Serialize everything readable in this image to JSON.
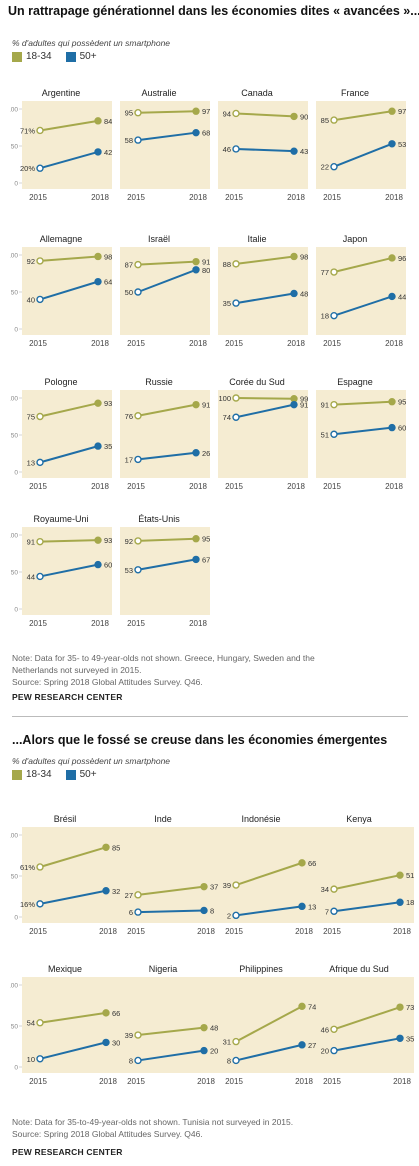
{
  "colors": {
    "young": "#a5a84b",
    "old": "#1f6ea6",
    "panel_bg": "#f5ecd2",
    "ytick": "#888888"
  },
  "section1": {
    "title": "Un rattrapage générationnel dans les économies dites « avancées »...",
    "subtitle": "% d'adultes qui possèdent un smartphone",
    "legend": [
      "18-34",
      "50+"
    ],
    "note_lines": [
      "Note: Data for 35- to 49-year-olds not shown. Greece, Hungary, Sweden and the",
      "Netherlands not surveyed in 2015.",
      "Source: Spring 2018 Global Attitudes Survey. Q46."
    ],
    "brand": "PEW RESEARCH CENTER"
  },
  "section2": {
    "title": "...Alors que le fossé se creuse dans les économies émergentes",
    "subtitle": "% d'adultes qui possèdent un smartphone",
    "legend": [
      "18-34",
      "50+"
    ],
    "note_lines": [
      "Note: Data for 35-to-49-year-olds not shown. Tunisia not surveyed in 2015.",
      "Source: Spring 2018 Global Attitudes Survey. Q46."
    ],
    "brand": "PEW RESEARCH CENTER"
  },
  "chart_data": [
    {
      "type": "line",
      "x": [
        "2015",
        "2018"
      ],
      "yticks": [
        "100",
        "50",
        "0"
      ],
      "ylim": [
        0,
        100
      ],
      "series_names": [
        "18-34",
        "50+"
      ],
      "panels": [
        {
          "title": "Argentine",
          "young": [
            71,
            84
          ],
          "old": [
            20,
            42
          ],
          "young_labels": [
            "71%",
            "84"
          ],
          "old_labels": [
            "20%",
            "42"
          ]
        },
        {
          "title": "Australie",
          "young": [
            95,
            97
          ],
          "old": [
            58,
            68
          ],
          "young_labels": [
            "95",
            "97"
          ],
          "old_labels": [
            "58",
            "68"
          ]
        },
        {
          "title": "Canada",
          "young": [
            94,
            90
          ],
          "old": [
            46,
            43
          ],
          "young_labels": [
            "94",
            "90"
          ],
          "old_labels": [
            "46",
            "43"
          ]
        },
        {
          "title": "France",
          "young": [
            85,
            97
          ],
          "old": [
            22,
            53
          ],
          "young_labels": [
            "85",
            "97"
          ],
          "old_labels": [
            "22",
            "53"
          ]
        },
        {
          "title": "Allemagne",
          "young": [
            92,
            98
          ],
          "old": [
            40,
            64
          ],
          "young_labels": [
            "92",
            "98"
          ],
          "old_labels": [
            "40",
            "64"
          ]
        },
        {
          "title": "Israël",
          "young": [
            87,
            91
          ],
          "old": [
            50,
            80
          ],
          "young_labels": [
            "87",
            "91"
          ],
          "old_labels": [
            "50",
            "80"
          ]
        },
        {
          "title": "Italie",
          "young": [
            88,
            98
          ],
          "old": [
            35,
            48
          ],
          "young_labels": [
            "88",
            "98"
          ],
          "old_labels": [
            "35",
            "48"
          ]
        },
        {
          "title": "Japon",
          "young": [
            77,
            96
          ],
          "old": [
            18,
            44
          ],
          "young_labels": [
            "77",
            "96"
          ],
          "old_labels": [
            "18",
            "44"
          ]
        },
        {
          "title": "Pologne",
          "young": [
            75,
            93
          ],
          "old": [
            13,
            35
          ],
          "young_labels": [
            "75",
            "93"
          ],
          "old_labels": [
            "13",
            "35"
          ]
        },
        {
          "title": "Russie",
          "young": [
            76,
            91
          ],
          "old": [
            17,
            26
          ],
          "young_labels": [
            "76",
            "91"
          ],
          "old_labels": [
            "17",
            "26"
          ]
        },
        {
          "title": "Corée du Sud",
          "young": [
            100,
            99
          ],
          "old": [
            74,
            91
          ],
          "young_labels": [
            "100",
            "99"
          ],
          "old_labels": [
            "74",
            "91"
          ]
        },
        {
          "title": "Espagne",
          "young": [
            91,
            95
          ],
          "old": [
            51,
            60
          ],
          "young_labels": [
            "91",
            "95"
          ],
          "old_labels": [
            "51",
            "60"
          ]
        },
        {
          "title": "Royaume-Uni",
          "young": [
            91,
            93
          ],
          "old": [
            44,
            60
          ],
          "young_labels": [
            "91",
            "93"
          ],
          "old_labels": [
            "44",
            "60"
          ]
        },
        {
          "title": "États-Unis",
          "young": [
            92,
            95
          ],
          "old": [
            53,
            67
          ],
          "young_labels": [
            "92",
            "95"
          ],
          "old_labels": [
            "53",
            "67"
          ]
        }
      ]
    },
    {
      "type": "line",
      "x": [
        "2015",
        "2018"
      ],
      "yticks": [
        "100",
        "50",
        "0"
      ],
      "ylim": [
        0,
        100
      ],
      "series_names": [
        "18-34",
        "50+"
      ],
      "panels": [
        {
          "title": "Brésil",
          "young": [
            61,
            85
          ],
          "old": [
            16,
            32
          ],
          "young_labels": [
            "61%",
            "85"
          ],
          "old_labels": [
            "16%",
            "32"
          ]
        },
        {
          "title": "Inde",
          "young": [
            27,
            37
          ],
          "old": [
            6,
            8
          ],
          "young_labels": [
            "27",
            "37"
          ],
          "old_labels": [
            "6",
            "8"
          ]
        },
        {
          "title": "Indonésie",
          "young": [
            39,
            66
          ],
          "old": [
            2,
            13
          ],
          "young_labels": [
            "39",
            "66"
          ],
          "old_labels": [
            "2",
            "13"
          ]
        },
        {
          "title": "Kenya",
          "young": [
            34,
            51
          ],
          "old": [
            7,
            18
          ],
          "young_labels": [
            "34",
            "51"
          ],
          "old_labels": [
            "7",
            "18"
          ]
        },
        {
          "title": "Mexique",
          "young": [
            54,
            66
          ],
          "old": [
            10,
            30
          ],
          "young_labels": [
            "54",
            "66"
          ],
          "old_labels": [
            "10",
            "30"
          ]
        },
        {
          "title": "Nigeria",
          "young": [
            39,
            48
          ],
          "old": [
            8,
            20
          ],
          "young_labels": [
            "39",
            "48"
          ],
          "old_labels": [
            "8",
            "20"
          ]
        },
        {
          "title": "Philippines",
          "young": [
            31,
            74
          ],
          "old": [
            8,
            27
          ],
          "young_labels": [
            "31",
            "74"
          ],
          "old_labels": [
            "8",
            "27"
          ]
        },
        {
          "title": "Afrique du Sud",
          "young": [
            46,
            73
          ],
          "old": [
            20,
            35
          ],
          "young_labels": [
            "46",
            "73"
          ],
          "old_labels": [
            "20",
            "35"
          ]
        }
      ]
    }
  ]
}
